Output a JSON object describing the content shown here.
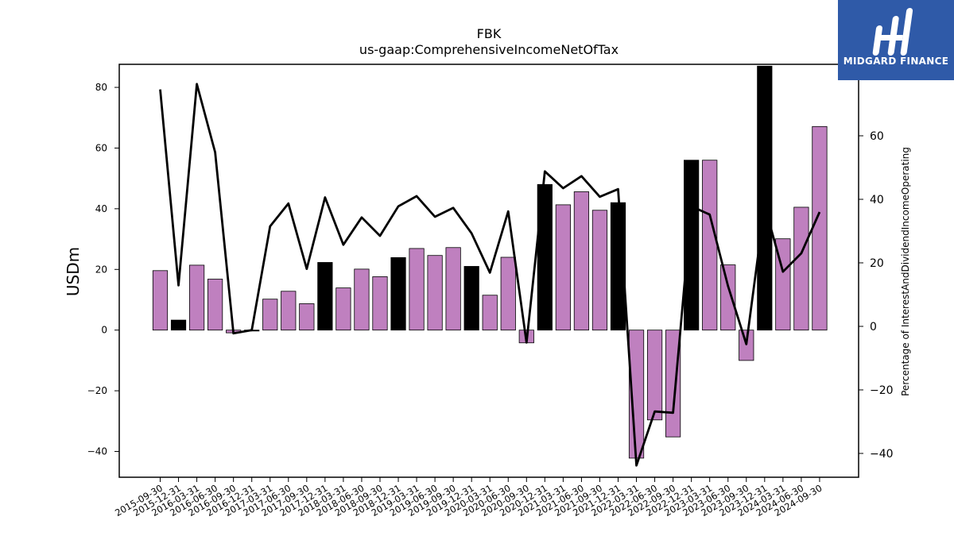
{
  "chart_data": {
    "type": "bar",
    "title": "FBK",
    "subtitle": "us-gaap:ComprehensiveIncomeNetOfTax",
    "ylabel": "USDm",
    "y2label": "Percentage of InterestAndDividendIncomeOperating",
    "ylim": [
      -48.5,
      87.6
    ],
    "y2lim": [
      -47.5,
      82.5
    ],
    "yticks": [
      -40,
      -20,
      0,
      20,
      40,
      60,
      80
    ],
    "y2ticks": [
      -40,
      -20,
      0,
      20,
      40,
      60
    ],
    "categories": [
      "2015-09-30",
      "2015-12-31",
      "2016-03-31",
      "2016-06-30",
      "2016-09-30",
      "2016-12-31",
      "2017-03-31",
      "2017-06-30",
      "2017-09-30",
      "2017-12-31",
      "2018-03-31",
      "2018-06-30",
      "2018-09-30",
      "2018-12-31",
      "2019-03-31",
      "2019-06-30",
      "2019-09-30",
      "2019-12-31",
      "2020-03-31",
      "2020-06-30",
      "2020-09-30",
      "2020-12-31",
      "2021-03-31",
      "2021-06-30",
      "2021-09-30",
      "2021-12-31",
      "2022-03-31",
      "2022-06-30",
      "2022-09-30",
      "2022-12-31",
      "2023-03-31",
      "2023-06-30",
      "2023-09-30",
      "2023-12-31",
      "2024-03-31",
      "2024-06-30",
      "2024-09-30"
    ],
    "series": [
      {
        "type": "bar",
        "axis": "left",
        "values": [
          19.6,
          3.3,
          21.4,
          16.8,
          -0.9,
          -0.3,
          10.2,
          12.8,
          8.7,
          22.3,
          13.9,
          20.1,
          17.6,
          23.9,
          26.9,
          24.6,
          27.2,
          21.0,
          11.5,
          24.0,
          -4.2,
          48.0,
          41.3,
          45.6,
          39.5,
          42.0,
          -42.2,
          -29.6,
          -35.2,
          56.0,
          56.0,
          21.5,
          -10.0,
          87.0,
          30.1,
          40.5,
          67.1
        ],
        "colors": [
          "#bf80bf",
          "#000000",
          "#bf80bf",
          "#bf80bf",
          "#bf80bf",
          "#000000",
          "#bf80bf",
          "#bf80bf",
          "#bf80bf",
          "#000000",
          "#bf80bf",
          "#bf80bf",
          "#bf80bf",
          "#000000",
          "#bf80bf",
          "#bf80bf",
          "#bf80bf",
          "#000000",
          "#bf80bf",
          "#bf80bf",
          "#bf80bf",
          "#000000",
          "#bf80bf",
          "#bf80bf",
          "#bf80bf",
          "#000000",
          "#bf80bf",
          "#bf80bf",
          "#bf80bf",
          "#000000",
          "#bf80bf",
          "#bf80bf",
          "#bf80bf",
          "#000000",
          "#bf80bf",
          "#bf80bf",
          "#bf80bf"
        ]
      },
      {
        "type": "line",
        "axis": "right",
        "color": "#000000",
        "values": [
          74.6,
          12.9,
          76.3,
          54.8,
          -2.2,
          -1.2,
          31.5,
          38.7,
          18.1,
          40.6,
          25.7,
          34.3,
          28.5,
          37.8,
          41.0,
          34.5,
          37.3,
          29.3,
          16.9,
          36.2,
          -5.1,
          48.8,
          43.5,
          47.3,
          40.8,
          43.2,
          -43.8,
          -26.8,
          -27.2,
          37.8,
          35.2,
          12.7,
          -5.6,
          38.0,
          17.2,
          23.0,
          36.0
        ]
      }
    ],
    "bar_colors": {
      "primary": "#bf80bf",
      "year_end": "#000000",
      "line": "#000000"
    }
  },
  "logo": {
    "text": "MIDGARD FINANCE",
    "color": "#2f5aa8"
  }
}
